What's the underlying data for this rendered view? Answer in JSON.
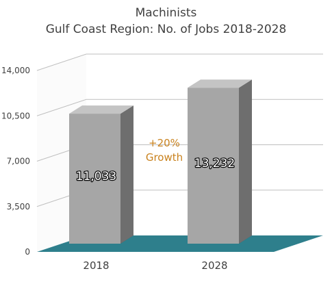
{
  "chart_data": {
    "type": "bar",
    "title": "Machinists",
    "subtitle": "Gulf Coast Region: No. of Jobs 2018-2028",
    "categories": [
      "2018",
      "2028"
    ],
    "values": [
      11033,
      13232
    ],
    "value_labels": [
      "11,033",
      "13,232"
    ],
    "ylim": [
      0,
      14000
    ],
    "yticks": [
      0,
      3500,
      7000,
      10500,
      14000
    ],
    "ytick_labels": [
      "0",
      "3,500",
      "7,000",
      "10,500",
      "14,000"
    ],
    "annotation": {
      "line1": "+20%",
      "line2": "Growth"
    },
    "grid": true,
    "style": "3d",
    "colors": {
      "bar": "#a6a6a6",
      "floor": "#2e7f8c",
      "annotation": "#c9821e",
      "grid": "#bfbfbf"
    }
  }
}
